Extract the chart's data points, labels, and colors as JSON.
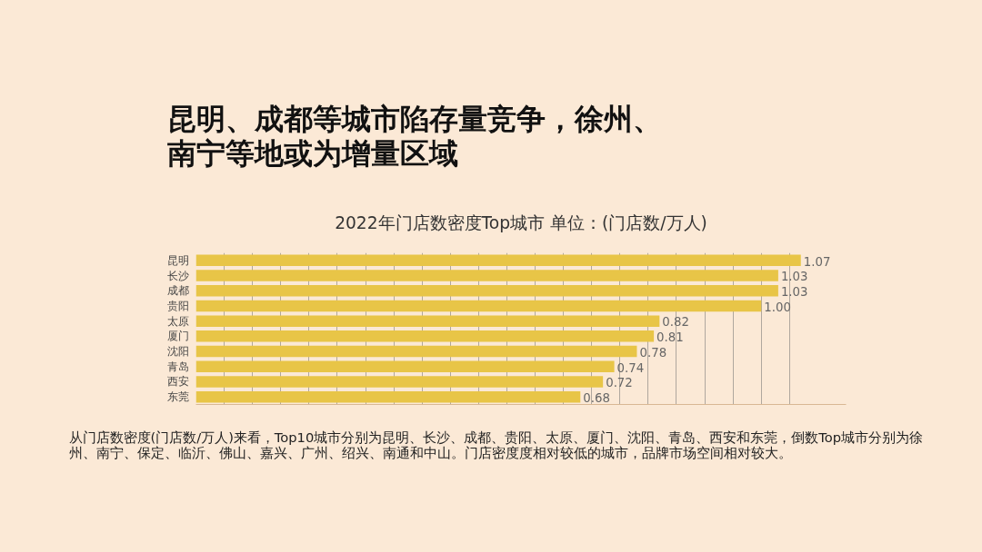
{
  "chart_data": {
    "type": "bar",
    "orientation": "horizontal",
    "title": "昆明、成都等城市陷存量竞争，徐州、南宁等地或为增量区域",
    "subtitle": "2022年门店数密度Top城市 单位：(门店数/万人)",
    "categories": [
      "昆明",
      "长沙",
      "成都",
      "贵阳",
      "太原",
      "厦门",
      "沈阳",
      "青岛",
      "西安",
      "东莞"
    ],
    "values": [
      1.07,
      1.03,
      1.03,
      1.0,
      0.82,
      0.81,
      0.78,
      0.74,
      0.72,
      0.68
    ],
    "value_labels": [
      "1.07",
      "1.03",
      "1.03",
      "1.00",
      "0.82",
      "0.81",
      "0.78",
      "0.74",
      "0.72",
      "0.68"
    ],
    "color": "#e8c547",
    "xlim": [
      0,
      1.15
    ],
    "xticks": [
      {
        "value": 0.05,
        "label": null
      },
      {
        "value": 0.1,
        "label": null
      },
      {
        "value": 0.15,
        "label": null
      },
      {
        "value": 0.2,
        "label": null
      },
      {
        "value": 0.25,
        "label": null
      },
      {
        "value": 0.3,
        "label": null
      },
      {
        "value": 0.35,
        "label": null
      },
      {
        "value": 0.4,
        "label": null
      },
      {
        "value": 0.45,
        "label": null
      },
      {
        "value": 0.5,
        "label": null
      },
      {
        "value": 0.55,
        "label": null
      },
      {
        "value": 0.6,
        "label": null
      },
      {
        "value": 0.65,
        "label": null
      },
      {
        "value": 0.7,
        "label": null
      },
      {
        "value": 0.75,
        "label": null
      },
      {
        "value": 0.8,
        "label": null
      },
      {
        "value": 0.85,
        "label": null
      },
      {
        "value": 0.9,
        "label": null
      },
      {
        "value": 0.95,
        "label": null
      },
      {
        "value": 1.0,
        "label": null
      },
      {
        "value": 1.05,
        "label": null
      }
    ],
    "grid": "x",
    "tick_labels": "y",
    "annotations": [
      "从门店数密度(门店数/万人)来看，Top10城市分别为昆明、长沙、成都、贵阳、太原、厦门、沈阳、青岛、西安和东莞，倒数Top城市分别为徐州、南宁、保定、临沂、佛山、嘉兴、广州、绍兴、南通和中山。门店密度度相对较低的城市，品牌市场空间相对较大。"
    ]
  }
}
